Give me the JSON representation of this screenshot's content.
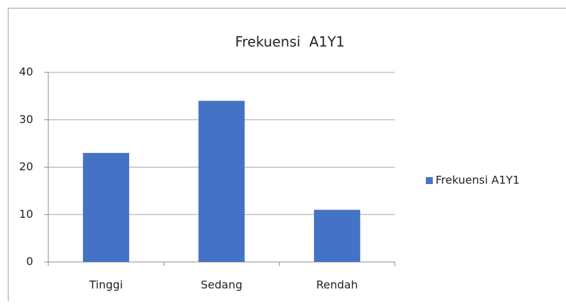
{
  "chart_data": {
    "type": "bar",
    "title": "Frekuensi  A1Y1",
    "categories": [
      "Tinggi",
      "Sedang",
      "Rendah"
    ],
    "series": [
      {
        "name": "Frekuensi A1Y1",
        "color": "#4472c4",
        "values": [
          23,
          34,
          11
        ]
      }
    ],
    "ylim": [
      0,
      40
    ],
    "yticks": [
      0,
      10,
      20,
      30,
      40
    ],
    "grid": true,
    "legend": "right"
  }
}
